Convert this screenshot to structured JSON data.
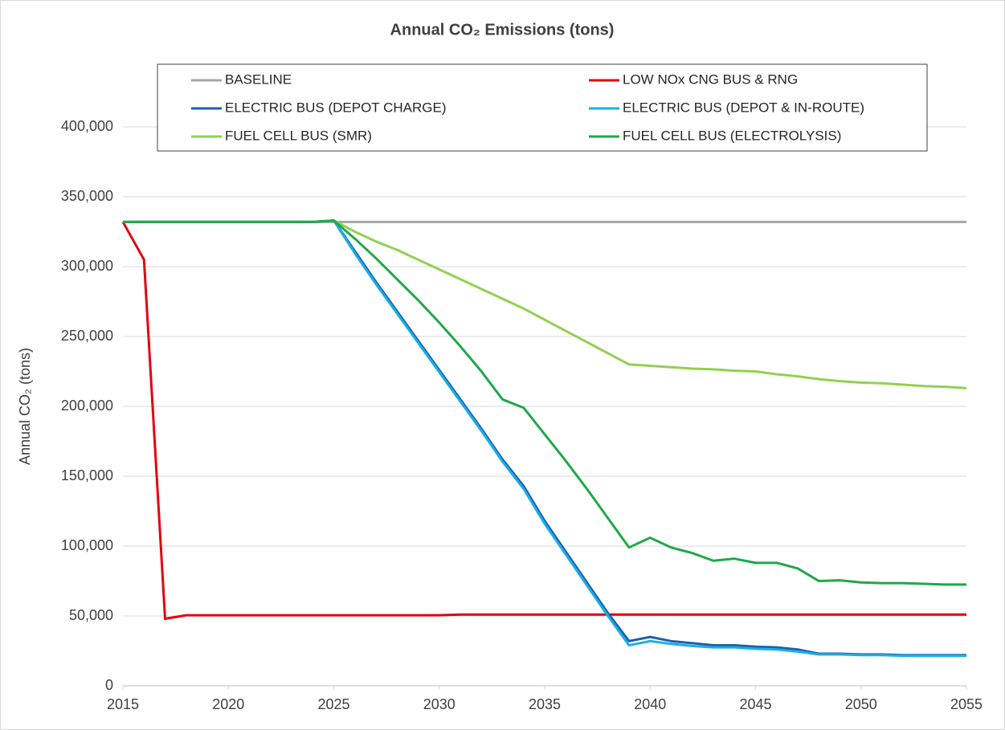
{
  "chart_data": {
    "type": "line",
    "title": "Annual CO₂ Emissions (tons)",
    "y_label": "Annual CO₂ (tons)",
    "x": [
      2015,
      2016,
      2017,
      2018,
      2019,
      2020,
      2021,
      2022,
      2023,
      2024,
      2025,
      2026,
      2027,
      2028,
      2029,
      2030,
      2031,
      2032,
      2033,
      2034,
      2035,
      2036,
      2037,
      2038,
      2039,
      2040,
      2041,
      2042,
      2043,
      2044,
      2045,
      2046,
      2047,
      2048,
      2049,
      2050,
      2051,
      2052,
      2053,
      2054,
      2055
    ],
    "xlim": [
      2015,
      2055
    ],
    "xticks": [
      2015,
      2020,
      2025,
      2030,
      2035,
      2040,
      2045,
      2050,
      2055
    ],
    "ylim": [
      0,
      400000
    ],
    "yticks": [
      0,
      {
        "value": 50000,
        "label": "50,000"
      },
      {
        "value": 100000,
        "label": "100,000"
      },
      {
        "value": 150000,
        "label": "150,000"
      },
      {
        "value": 200000,
        "label": "200,000"
      },
      {
        "value": 250000,
        "label": "250,000"
      },
      {
        "value": 300000,
        "label": "300,000"
      },
      {
        "value": 350000,
        "label": "350,000"
      },
      {
        "value": 400000,
        "label": "400,000"
      }
    ],
    "grid": true,
    "legend": "top",
    "series": [
      {
        "name": "BASELINE",
        "color": "#a6a6a6",
        "values": [
          332000,
          332000,
          332000,
          332000,
          332000,
          332000,
          332000,
          332000,
          332000,
          332000,
          332000,
          332000,
          332000,
          332000,
          332000,
          332000,
          332000,
          332000,
          332000,
          332000,
          332000,
          332000,
          332000,
          332000,
          332000,
          332000,
          332000,
          332000,
          332000,
          332000,
          332000,
          332000,
          332000,
          332000,
          332000,
          332000,
          332000,
          332000,
          332000,
          332000,
          332000
        ]
      },
      {
        "name": "LOW NOx CNG BUS & RNG",
        "color": "#e3000f",
        "values": [
          332000,
          305000,
          48000,
          50500,
          50500,
          50500,
          50500,
          50500,
          50500,
          50500,
          50500,
          50500,
          50500,
          50500,
          50500,
          50500,
          51000,
          51000,
          51000,
          51000,
          51000,
          51000,
          51000,
          51000,
          51000,
          51000,
          51000,
          51000,
          51000,
          51000,
          51000,
          51000,
          51000,
          51000,
          51000,
          51000,
          51000,
          51000,
          51000,
          51000,
          51000
        ]
      },
      {
        "name": "ELECTRIC BUS (DEPOT CHARGE)",
        "color": "#1f5fa8",
        "values": [
          332000,
          332000,
          332000,
          332000,
          332000,
          332000,
          332000,
          332000,
          332000,
          332000,
          333000,
          311000,
          289000,
          268000,
          247000,
          226000,
          205000,
          184000,
          162000,
          143000,
          118000,
          96000,
          74000,
          52000,
          32000,
          35000,
          32000,
          30500,
          29000,
          29000,
          28000,
          27500,
          26000,
          23000,
          23000,
          22500,
          22500,
          22000,
          22000,
          22000,
          22000
        ]
      },
      {
        "name": "ELECTRIC BUS (DEPOT & IN-ROUTE)",
        "color": "#19aee8",
        "values": [
          332000,
          332000,
          332000,
          332000,
          332000,
          332000,
          332000,
          332000,
          332000,
          332000,
          333000,
          309500,
          287500,
          266500,
          245500,
          224500,
          203500,
          182500,
          160500,
          141000,
          116000,
          94000,
          72000,
          50000,
          29000,
          32000,
          30000,
          28500,
          27500,
          27500,
          26500,
          26000,
          24500,
          22500,
          22500,
          22000,
          22000,
          21500,
          21500,
          21500,
          21500
        ]
      },
      {
        "name": "FUEL CELL BUS (SMR)",
        "color": "#92d050",
        "values": [
          332000,
          332000,
          332000,
          332000,
          332000,
          332000,
          332000,
          332000,
          332000,
          332000,
          333000,
          325000,
          318000,
          312000,
          305000,
          298000,
          291000,
          284000,
          277000,
          270000,
          262000,
          254000,
          246000,
          238000,
          230000,
          229000,
          228000,
          227000,
          226500,
          225500,
          225000,
          223000,
          221500,
          219500,
          218000,
          217000,
          216500,
          215500,
          214500,
          214000,
          213000
        ]
      },
      {
        "name": "FUEL CELL BUS (ELECTROLYSIS)",
        "color": "#1fa84a",
        "values": [
          332000,
          332000,
          332000,
          332000,
          332000,
          332000,
          332000,
          332000,
          332000,
          332000,
          333000,
          320000,
          306000,
          291000,
          276000,
          260000,
          243000,
          225000,
          205000,
          199000,
          180000,
          161000,
          141000,
          120000,
          99000,
          106000,
          99000,
          95000,
          89500,
          91000,
          88000,
          88000,
          84000,
          75000,
          75500,
          74000,
          73500,
          73500,
          73000,
          72500,
          72500
        ]
      }
    ]
  }
}
